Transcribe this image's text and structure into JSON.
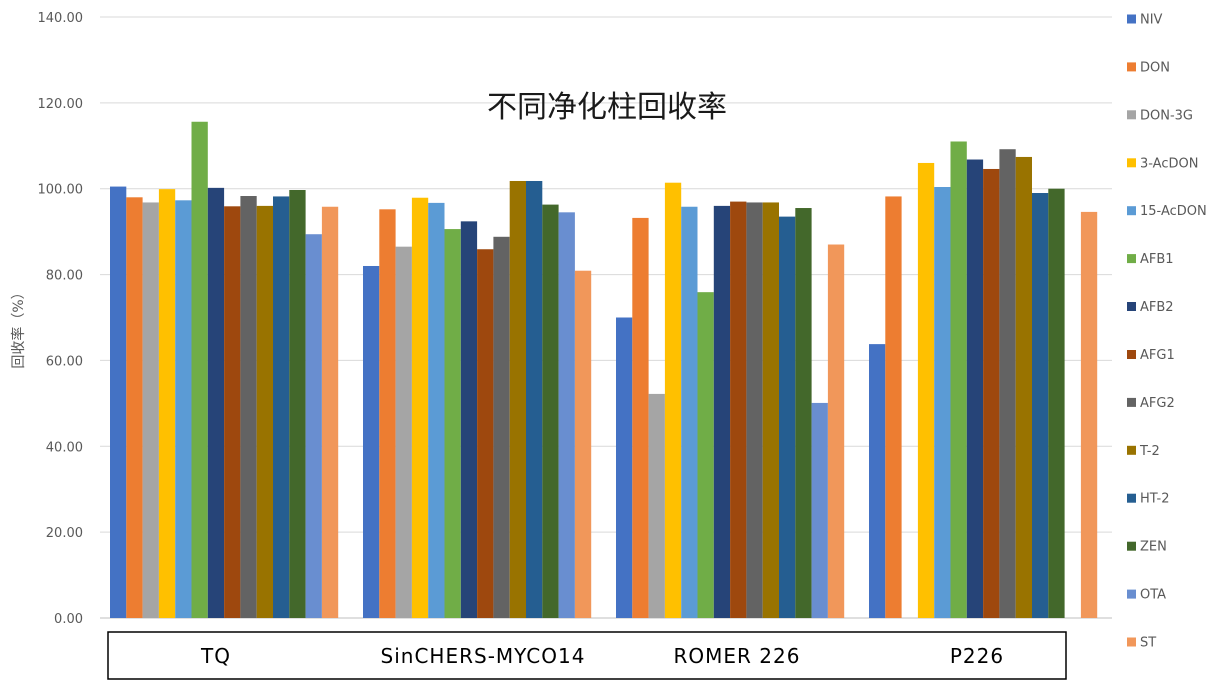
{
  "chart_data": {
    "type": "bar",
    "title": "不同净化柱回收率",
    "ylabel": "回收率（%）",
    "xlabel": "",
    "ylim": [
      0,
      140
    ],
    "yticks": [
      "0.00",
      "20.00",
      "40.00",
      "60.00",
      "80.00",
      "100.00",
      "120.00",
      "140.00"
    ],
    "grid": true,
    "legend_position": "right",
    "categories": [
      "TQ",
      "SinCHERS-MYCO14",
      "ROMER 226",
      "P226"
    ],
    "series": [
      {
        "name": "NIV",
        "color": "#4472C4",
        "values": [
          100.5,
          82.0,
          70.0,
          63.8
        ]
      },
      {
        "name": "DON",
        "color": "#ED7D31",
        "values": [
          98.0,
          95.2,
          93.2,
          98.2
        ]
      },
      {
        "name": "DON-3G",
        "color": "#A5A5A5",
        "values": [
          96.8,
          86.5,
          52.2,
          null
        ]
      },
      {
        "name": "3-AcDON",
        "color": "#FFC000",
        "values": [
          99.9,
          97.9,
          101.4,
          106.0
        ]
      },
      {
        "name": "15-AcDON",
        "color": "#5B9BD5",
        "values": [
          97.3,
          96.7,
          95.8,
          100.4
        ]
      },
      {
        "name": "AFB1",
        "color": "#70AD47",
        "values": [
          115.6,
          90.6,
          75.9,
          111.0
        ]
      },
      {
        "name": "AFB2",
        "color": "#264478",
        "values": [
          100.2,
          92.4,
          96.0,
          106.8
        ]
      },
      {
        "name": "AFG1",
        "color": "#9E480E",
        "values": [
          95.9,
          85.9,
          97.0,
          104.6
        ]
      },
      {
        "name": "AFG2",
        "color": "#636363",
        "values": [
          98.3,
          88.8,
          96.8,
          109.2
        ]
      },
      {
        "name": "T-2",
        "color": "#997300",
        "values": [
          96.0,
          101.8,
          96.8,
          107.4
        ]
      },
      {
        "name": "HT-2",
        "color": "#255E91",
        "values": [
          98.2,
          101.8,
          93.5,
          99.0
        ]
      },
      {
        "name": "ZEN",
        "color": "#43682B",
        "values": [
          99.7,
          96.3,
          95.5,
          100.0
        ]
      },
      {
        "name": "OTA",
        "color": "#698ED0",
        "values": [
          89.4,
          94.5,
          50.1,
          null
        ]
      },
      {
        "name": "ST",
        "color": "#F1975A",
        "values": [
          95.8,
          80.9,
          87.0,
          94.6
        ]
      }
    ]
  }
}
